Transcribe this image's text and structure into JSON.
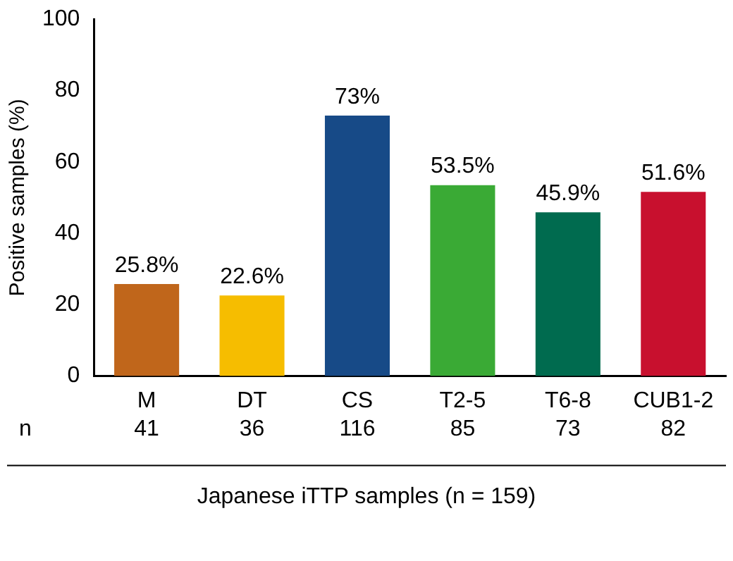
{
  "chart_data": {
    "type": "bar",
    "ylabel": "Positive samples (%)",
    "xlabel": "Japanese iTTP samples (n = 159)",
    "categories": [
      "M",
      "DT",
      "CS",
      "T2-5",
      "T6-8",
      "CUB1-2"
    ],
    "values": [
      25.8,
      22.6,
      73,
      53.5,
      45.9,
      51.6
    ],
    "colors": [
      "#c0661b",
      "#f6bd00",
      "#174a87",
      "#3aaa35",
      "#006b4f",
      "#c8102e"
    ],
    "value_labels": [
      "25.8%",
      "22.6%",
      "73%",
      "53.5%",
      "45.9%",
      "51.6%"
    ],
    "annotations": [
      "n",
      "41",
      "36",
      "116",
      "85",
      "73",
      "82"
    ],
    "ylim": [
      0,
      100
    ],
    "yticks": [
      0,
      20,
      40,
      60,
      80,
      100
    ],
    "grid": false,
    "legend": false
  }
}
